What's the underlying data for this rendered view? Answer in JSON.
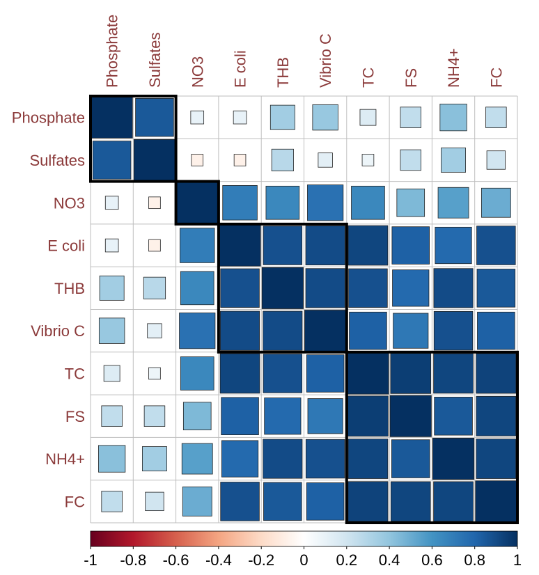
{
  "chart_data": {
    "type": "heatmap",
    "variables": [
      "Phosphate",
      "Sulfates",
      "NO3",
      "E coli",
      "THB",
      "Vibrio C",
      "TC",
      "FS",
      "NH4+",
      "FC"
    ],
    "matrix": [
      [
        1.0,
        0.85,
        0.1,
        0.1,
        0.35,
        0.38,
        0.15,
        0.25,
        0.42,
        0.25
      ],
      [
        0.85,
        1.0,
        -0.08,
        -0.08,
        0.28,
        0.12,
        0.08,
        0.25,
        0.35,
        0.2
      ],
      [
        0.1,
        -0.08,
        1.0,
        0.7,
        0.65,
        0.75,
        0.65,
        0.45,
        0.55,
        0.5
      ],
      [
        0.1,
        -0.08,
        0.7,
        1.0,
        0.88,
        0.9,
        0.92,
        0.82,
        0.78,
        0.88
      ],
      [
        0.35,
        0.28,
        0.65,
        0.88,
        1.0,
        0.9,
        0.88,
        0.78,
        0.9,
        0.85
      ],
      [
        0.38,
        0.12,
        0.75,
        0.9,
        0.9,
        1.0,
        0.82,
        0.72,
        0.88,
        0.82
      ],
      [
        0.15,
        0.08,
        0.65,
        0.92,
        0.88,
        0.82,
        1.0,
        0.95,
        0.92,
        0.93
      ],
      [
        0.25,
        0.25,
        0.45,
        0.82,
        0.78,
        0.72,
        0.95,
        1.0,
        0.85,
        0.92
      ],
      [
        0.42,
        0.35,
        0.55,
        0.78,
        0.9,
        0.88,
        0.92,
        0.85,
        1.0,
        0.92
      ],
      [
        0.25,
        0.2,
        0.5,
        0.88,
        0.85,
        0.82,
        0.93,
        0.92,
        0.92,
        1.0
      ]
    ],
    "clusters": [
      {
        "start": 0,
        "end": 1
      },
      {
        "start": 2,
        "end": 2
      },
      {
        "start": 3,
        "end": 5
      },
      {
        "start": 6,
        "end": 9
      }
    ],
    "colorbar": {
      "range": [
        -1,
        1
      ],
      "ticks": [
        "-1",
        "-0.8",
        "-0.6",
        "-0.4",
        "-0.2",
        "0",
        "0.2",
        "0.4",
        "0.6",
        "0.8",
        "1"
      ],
      "colors": [
        "#67001F",
        "#B2182B",
        "#D6604D",
        "#F4A582",
        "#FDDBC7",
        "#FFFFFF",
        "#D1E5F0",
        "#92C5DE",
        "#4393C3",
        "#2166AC",
        "#053061"
      ]
    },
    "label_color": "#8B3A3A",
    "grid": true,
    "legend_position": "bottom"
  }
}
